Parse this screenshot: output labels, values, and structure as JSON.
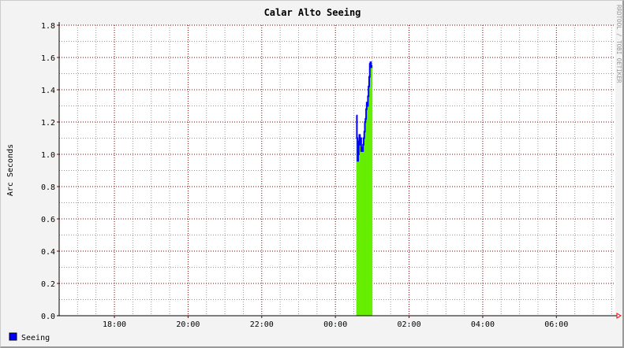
{
  "chart_data": {
    "type": "area",
    "title": "Calar Alto Seeing",
    "ylabel": "Arc Seconds",
    "xlabel": "",
    "watermark": "RRDTOOL / TOBI OETIKER",
    "ylim": [
      0,
      1.8
    ],
    "xlim": [
      "16:30",
      "07:36"
    ],
    "yticks": [
      "0.0",
      "0.2",
      "0.4",
      "0.6",
      "0.8",
      "1.0",
      "1.2",
      "1.4",
      "1.6",
      "1.8"
    ],
    "xticks": [
      "18:00",
      "20:00",
      "22:00",
      "00:00",
      "02:00",
      "04:00",
      "06:00"
    ],
    "grid": true,
    "legend_position": "bottom-left",
    "series": [
      {
        "name": "Seeing",
        "line_color": "#0000ff",
        "fill_color": "#66ee00",
        "x": [
          "00:34",
          "00:35",
          "00:36",
          "00:37",
          "00:38",
          "00:39",
          "00:40",
          "00:41",
          "00:42",
          "00:43",
          "00:44",
          "00:45",
          "00:46",
          "00:47",
          "00:48",
          "00:49",
          "00:50",
          "00:51",
          "00:52",
          "00:53",
          "00:54",
          "00:55",
          "00:56",
          "00:57",
          "00:58",
          "00:59"
        ],
        "y": [
          1.24,
          1.1,
          0.96,
          1.0,
          1.08,
          1.12,
          1.06,
          1.1,
          1.02,
          1.04,
          1.02,
          1.06,
          1.1,
          1.14,
          1.2,
          1.22,
          1.28,
          1.32,
          1.3,
          1.36,
          1.42,
          1.48,
          1.56,
          1.57,
          1.54,
          1.55
        ]
      }
    ]
  },
  "colors": {
    "major_grid": "#800000",
    "minor_grid": "#999999",
    "background": "#f3f3f3",
    "canvas": "#ffffff",
    "arrow": "#ff0000"
  }
}
